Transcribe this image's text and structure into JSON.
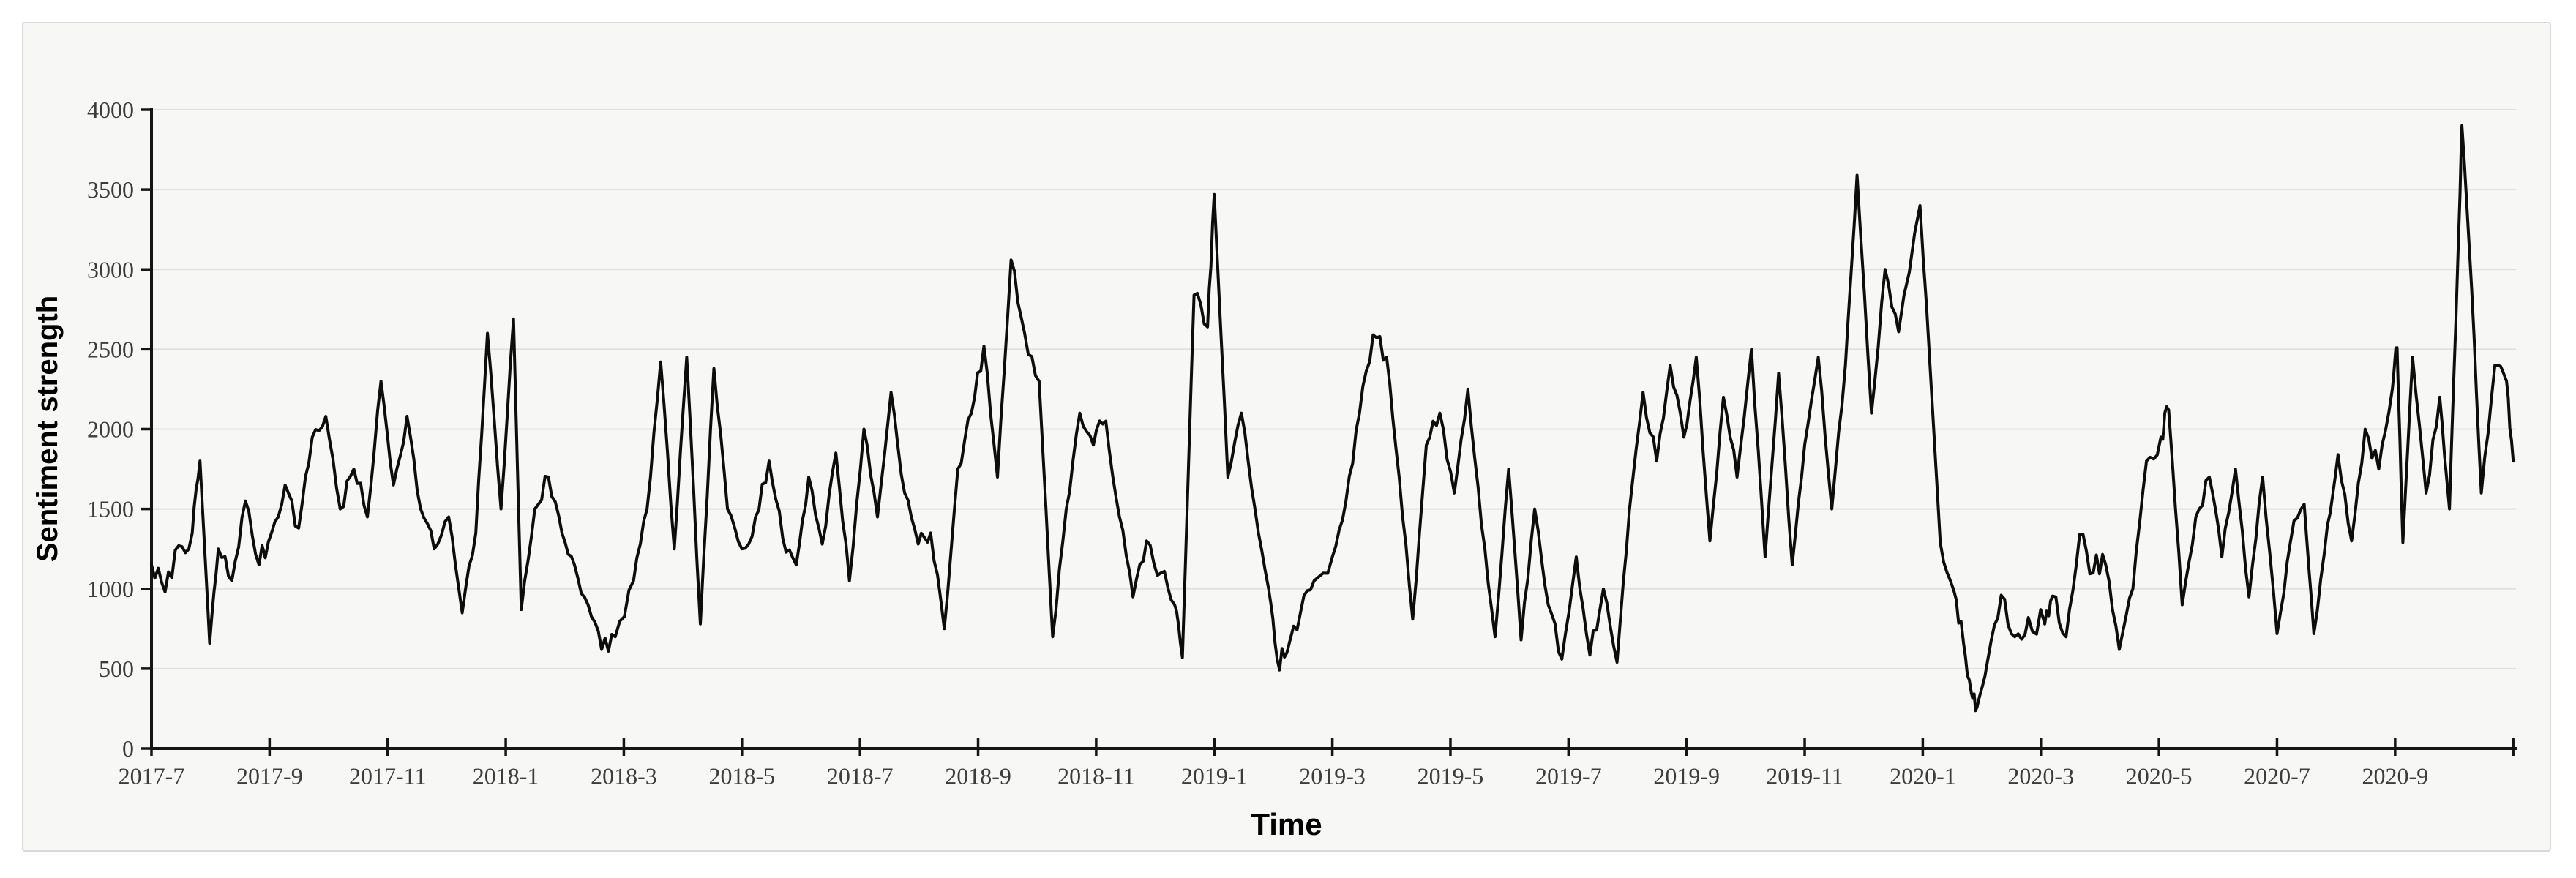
{
  "chart_data": {
    "type": "line",
    "title": "",
    "xlabel": "Time",
    "ylabel": "Sentiment strength",
    "ylim": [
      0,
      4000
    ],
    "x_range_months": [
      "2017-07",
      "2020-11"
    ],
    "y_tick_labels": [
      "0",
      "500",
      "1000",
      "1500",
      "2000",
      "2500",
      "3000",
      "3500",
      "4000"
    ],
    "x_tick_labels": [
      "2017-7",
      "2017-9",
      "2017-11",
      "2018-1",
      "2018-3",
      "2018-5",
      "2018-7",
      "2018-9",
      "2018-11",
      "2019-1",
      "2019-3",
      "2019-5",
      "2019-7",
      "2019-9",
      "2019-11",
      "2020-1",
      "2020-3",
      "2020-5",
      "2020-7",
      "2020-9"
    ],
    "layout": {
      "grid": true,
      "legend": false,
      "line_color": "#0d0d0d",
      "grid_color": "#e0e0e0",
      "axis_color": "#151515",
      "tick_label_color": "#3c3c3c",
      "plot_bg": "#f7f7f5",
      "noise_amplitude": 115,
      "noise_seed": 7,
      "subdivisions": 4
    },
    "series": [
      {
        "name": "sentiment",
        "dates": [
          "2017-07-01",
          "2017-07-08",
          "2017-07-15",
          "2017-07-22",
          "2017-07-26",
          "2017-07-31",
          "2017-08-05",
          "2017-08-12",
          "2017-08-19",
          "2017-08-26",
          "2017-09-02",
          "2017-09-09",
          "2017-09-16",
          "2017-09-23",
          "2017-09-30",
          "2017-10-07",
          "2017-10-14",
          "2017-10-21",
          "2017-10-28",
          "2017-11-04",
          "2017-11-11",
          "2017-11-18",
          "2017-11-25",
          "2017-12-02",
          "2017-12-09",
          "2017-12-16",
          "2017-12-22",
          "2017-12-29",
          "2018-01-05",
          "2018-01-09",
          "2018-01-16",
          "2018-01-23",
          "2018-01-30",
          "2018-02-06",
          "2018-02-13",
          "2018-02-20",
          "2018-02-27",
          "2018-03-06",
          "2018-03-13",
          "2018-03-20",
          "2018-03-27",
          "2018-04-03",
          "2018-04-10",
          "2018-04-17",
          "2018-04-24",
          "2018-05-01",
          "2018-05-08",
          "2018-05-15",
          "2018-05-22",
          "2018-05-29",
          "2018-06-05",
          "2018-06-12",
          "2018-06-19",
          "2018-06-26",
          "2018-07-03",
          "2018-07-10",
          "2018-07-17",
          "2018-07-24",
          "2018-07-31",
          "2018-08-07",
          "2018-08-14",
          "2018-08-21",
          "2018-08-28",
          "2018-09-04",
          "2018-09-11",
          "2018-09-18",
          "2018-09-25",
          "2018-10-02",
          "2018-10-09",
          "2018-10-16",
          "2018-10-23",
          "2018-10-30",
          "2018-11-06",
          "2018-11-13",
          "2018-11-20",
          "2018-11-27",
          "2018-12-04",
          "2018-12-11",
          "2018-12-15",
          "2018-12-21",
          "2018-12-28",
          "2019-01-01",
          "2019-01-08",
          "2019-01-15",
          "2019-01-22",
          "2019-01-29",
          "2019-02-03",
          "2019-02-08",
          "2019-02-15",
          "2019-02-22",
          "2019-03-01",
          "2019-03-08",
          "2019-03-15",
          "2019-03-22",
          "2019-03-29",
          "2019-04-05",
          "2019-04-12",
          "2019-04-19",
          "2019-04-26",
          "2019-05-03",
          "2019-05-10",
          "2019-05-17",
          "2019-05-24",
          "2019-05-31",
          "2019-06-07",
          "2019-06-14",
          "2019-06-21",
          "2019-06-28",
          "2019-07-05",
          "2019-07-12",
          "2019-07-19",
          "2019-07-26",
          "2019-08-02",
          "2019-08-09",
          "2019-08-16",
          "2019-08-23",
          "2019-08-30",
          "2019-09-06",
          "2019-09-13",
          "2019-09-20",
          "2019-09-27",
          "2019-10-04",
          "2019-10-11",
          "2019-10-18",
          "2019-10-25",
          "2019-11-01",
          "2019-11-08",
          "2019-11-15",
          "2019-11-22",
          "2019-11-28",
          "2019-12-05",
          "2019-12-12",
          "2019-12-19",
          "2019-12-30",
          "2020-01-03",
          "2020-01-10",
          "2020-01-17",
          "2020-01-22",
          "2020-01-26",
          "2020-01-29",
          "2020-02-04",
          "2020-02-11",
          "2020-02-18",
          "2020-02-25",
          "2020-03-03",
          "2020-03-07",
          "2020-03-14",
          "2020-03-21",
          "2020-03-28",
          "2020-04-04",
          "2020-04-11",
          "2020-04-18",
          "2020-04-25",
          "2020-05-02",
          "2020-05-06",
          "2020-05-13",
          "2020-05-20",
          "2020-05-27",
          "2020-06-03",
          "2020-06-10",
          "2020-06-17",
          "2020-06-24",
          "2020-07-01",
          "2020-07-08",
          "2020-07-15",
          "2020-07-20",
          "2020-07-27",
          "2020-08-02",
          "2020-08-09",
          "2020-08-16",
          "2020-08-23",
          "2020-08-30",
          "2020-09-02",
          "2020-09-05",
          "2020-09-10",
          "2020-09-17",
          "2020-09-24",
          "2020-09-29",
          "2020-10-03",
          "2020-10-05",
          "2020-10-10",
          "2020-10-15",
          "2020-10-22",
          "2020-10-28",
          "2020-11-01"
        ],
        "values": [
          1150,
          980,
          1270,
          1350,
          1800,
          660,
          1250,
          1050,
          1550,
          1150,
          1350,
          1650,
          1380,
          1950,
          2080,
          1500,
          1750,
          1450,
          2300,
          1650,
          2080,
          1500,
          1250,
          1450,
          850,
          1350,
          2600,
          1500,
          2690,
          870,
          1500,
          1700,
          1350,
          1150,
          900,
          620,
          700,
          1050,
          1500,
          2420,
          1250,
          2450,
          780,
          2380,
          1500,
          1250,
          1450,
          1800,
          1320,
          1150,
          1700,
          1280,
          1850,
          1050,
          2000,
          1450,
          2230,
          1600,
          1280,
          1350,
          750,
          1750,
          2100,
          2520,
          1700,
          3060,
          2600,
          2300,
          700,
          1500,
          2100,
          1900,
          2050,
          1450,
          950,
          1300,
          1100,
          900,
          570,
          2840,
          2640,
          3470,
          1700,
          2100,
          1500,
          1000,
          560,
          600,
          850,
          1050,
          1200,
          1550,
          2100,
          2590,
          2450,
          1700,
          810,
          1900,
          2100,
          1600,
          2250,
          1400,
          700,
          1750,
          680,
          1500,
          900,
          560,
          1200,
          585,
          1000,
          540,
          1500,
          2230,
          1800,
          2400,
          1950,
          2450,
          1300,
          2200,
          1700,
          2500,
          1200,
          2350,
          1150,
          1900,
          2450,
          1500,
          2400,
          3590,
          2100,
          3000,
          2610,
          3400,
          2760,
          1290,
          990,
          660,
          350,
          260,
          550,
          960,
          700,
          820,
          780,
          955,
          700,
          1340,
          1100,
          1150,
          620,
          1000,
          1800,
          1950,
          2120,
          900,
          1450,
          1700,
          1200,
          1750,
          950,
          1700,
          720,
          1300,
          1530,
          720,
          1400,
          1840,
          1300,
          2000,
          1750,
          2250,
          2510,
          1290,
          2450,
          1600,
          2200,
          1500,
          3100,
          3900,
          2880,
          1600,
          2400,
          2300,
          1800
        ]
      }
    ]
  }
}
